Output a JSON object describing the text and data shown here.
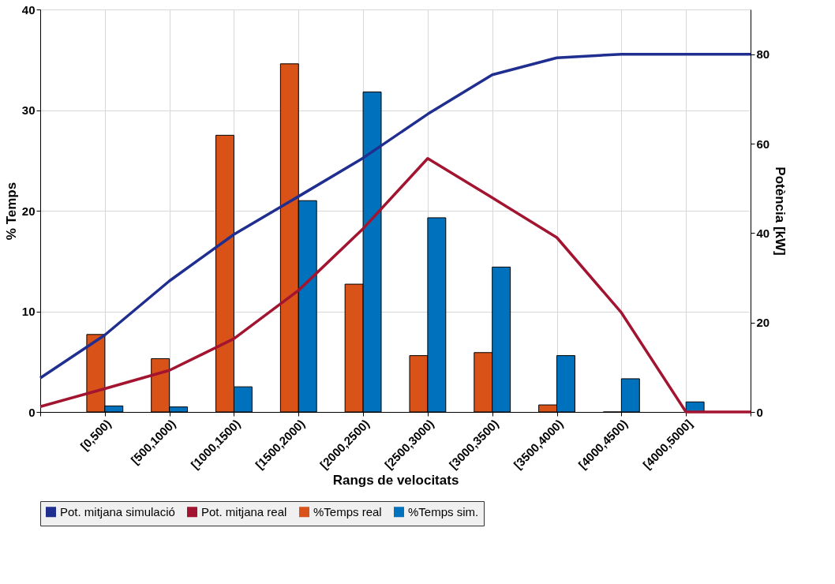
{
  "chart_data": {
    "type": "bar",
    "categories": [
      null,
      "[0,500)",
      "[500,1000)",
      "[1000,1500)",
      "[1500,2000)",
      "[2000,2500)",
      "[2500,3000)",
      "[3000,3500)",
      "[3500,4000)",
      "[4000,4500)",
      "[4000,5000]",
      null
    ],
    "xlabel": "Rangs de velocitats",
    "ylabel": "% Temps",
    "y2label": "Potència [kW]",
    "series": [
      {
        "name": "Pot. mitjana simulació",
        "color": "#1f2e8f",
        "type": "line",
        "axis": "y2",
        "values": [
          7.6,
          17.2,
          29.3,
          39.7,
          48.2,
          56.8,
          66.6,
          75.4,
          79.2,
          80,
          80,
          80
        ]
      },
      {
        "name": "Pot. mitjana real",
        "color": "#a2142f",
        "type": "line",
        "axis": "y2",
        "values": [
          1.2,
          5.2,
          9.3,
          16.4,
          27.2,
          41.0,
          56.7,
          47.9,
          39.0,
          22.2,
          0,
          0
        ]
      },
      {
        "name": "%Temps real",
        "color": "#d95319",
        "type": "bar",
        "values": [
          null,
          7.7,
          5.3,
          27.5,
          34.6,
          12.7,
          5.6,
          5.9,
          0.7,
          0,
          null,
          null
        ]
      },
      {
        "name": "%Temps sim.",
        "color": "#0072bd",
        "type": "bar",
        "values": [
          null,
          0.6,
          0.5,
          2.5,
          21.0,
          31.8,
          19.3,
          14.4,
          5.6,
          3.3,
          1.0,
          null
        ]
      }
    ],
    "ylim": [
      0,
      40
    ],
    "yticks": [
      0,
      10,
      20,
      30,
      40
    ],
    "y2lim": [
      0,
      90
    ],
    "y2ticks": [
      0,
      20,
      40,
      60,
      80
    ],
    "grid": true,
    "legend": "bottom"
  }
}
